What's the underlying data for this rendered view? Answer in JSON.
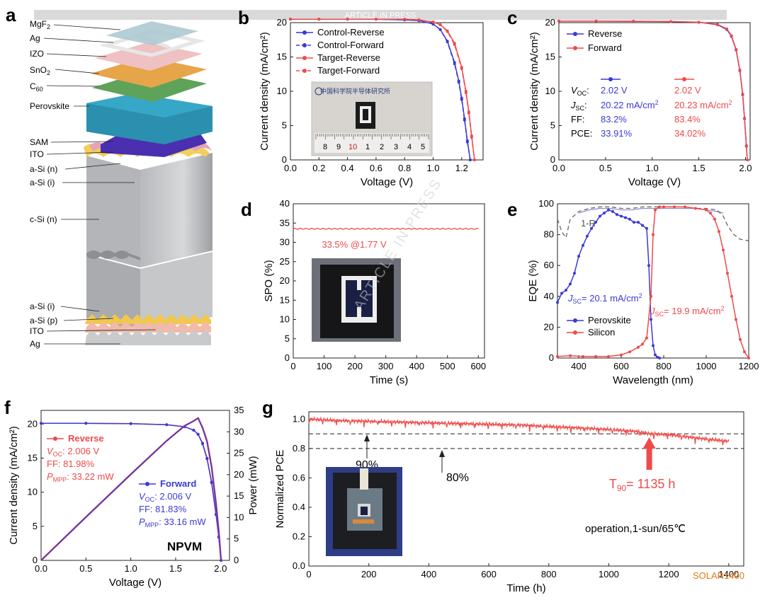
{
  "banner": "ARTICLE IN PRESS",
  "watermark": "ARTICLE IN PRESS",
  "corner_logo": "SOLAR1400",
  "colors": {
    "blue": "#3a3ad6",
    "red": "#ef4a4a",
    "gray": "#777777",
    "banner": "#d9d9d9"
  },
  "panels": {
    "a": "a",
    "b": "b",
    "c": "c",
    "d": "d",
    "e": "e",
    "f": "f",
    "g": "g"
  },
  "stack_labels": [
    "MgF2",
    "Ag",
    "IZO",
    "SnO2",
    "C60",
    "Perovskite",
    "SAM",
    "ITO",
    "a-Si (n)",
    "a-Si (i)",
    "c-Si (n)",
    "a-Si (i)",
    "a-Si (p)",
    "ITO",
    "Ag"
  ],
  "photo_b": {
    "header": "中国科学院半导体研究所",
    "ruler_numbers": [
      "8",
      "9",
      "10",
      "1",
      "2",
      "3",
      "4",
      "5"
    ]
  },
  "chart_data": [
    {
      "panel": "b",
      "type": "line",
      "xlabel": "Voltage (V)",
      "ylabel": "Current density (mA/cm²)",
      "xlim": [
        0,
        1.35
      ],
      "ylim": [
        0,
        20
      ],
      "xticks": [
        "0.0",
        "0.2",
        "0.4",
        "0.6",
        "0.8",
        "1.0",
        "1.2"
      ],
      "yticks": [
        "0",
        "5",
        "10",
        "15",
        "20"
      ],
      "legend": "top-left",
      "series": [
        {
          "name": "Control-Reverse",
          "color": "#3a3ad6",
          "dashed": false,
          "x": [
            0,
            0.2,
            0.4,
            0.6,
            0.8,
            0.9,
            1.0,
            1.05,
            1.1,
            1.15,
            1.18,
            1.2,
            1.22,
            1.24,
            1.26
          ],
          "y": [
            20.5,
            20.5,
            20.5,
            20.5,
            20.4,
            20.3,
            19.8,
            19.0,
            17.3,
            14.2,
            11.5,
            9.0,
            6.0,
            2.8,
            0
          ]
        },
        {
          "name": "Control-Forward",
          "color": "#3a3ad6",
          "dashed": true,
          "x": [
            0,
            0.2,
            0.4,
            0.6,
            0.8,
            0.9,
            1.0,
            1.05,
            1.1,
            1.15,
            1.18,
            1.2,
            1.22,
            1.24,
            1.26
          ],
          "y": [
            20.5,
            20.5,
            20.5,
            20.5,
            20.4,
            20.3,
            19.8,
            19.0,
            17.2,
            14.0,
            11.3,
            8.8,
            5.8,
            2.6,
            0
          ]
        },
        {
          "name": "Target-Reverse",
          "color": "#ef4a4a",
          "dashed": false,
          "x": [
            0,
            0.2,
            0.4,
            0.6,
            0.8,
            0.9,
            1.0,
            1.05,
            1.1,
            1.15,
            1.2,
            1.23,
            1.25,
            1.27,
            1.29
          ],
          "y": [
            20.5,
            20.5,
            20.5,
            20.5,
            20.5,
            20.4,
            20.1,
            19.7,
            18.8,
            17.0,
            13.5,
            10.0,
            7.0,
            3.5,
            0
          ]
        },
        {
          "name": "Target-Forward",
          "color": "#ef4a4a",
          "dashed": true,
          "x": [
            0,
            0.2,
            0.4,
            0.6,
            0.8,
            0.9,
            1.0,
            1.05,
            1.1,
            1.15,
            1.2,
            1.23,
            1.25,
            1.27,
            1.29
          ],
          "y": [
            20.5,
            20.5,
            20.5,
            20.5,
            20.5,
            20.4,
            20.1,
            19.7,
            18.7,
            16.8,
            13.3,
            9.8,
            6.8,
            3.3,
            0
          ]
        }
      ]
    },
    {
      "panel": "c",
      "type": "line",
      "xlabel": "Voltage (V)",
      "ylabel": "Current density (mA/cm²)",
      "xlim": [
        0,
        2.05
      ],
      "ylim": [
        0,
        20
      ],
      "xticks": [
        "0.0",
        "0.5",
        "1.0",
        "1.5",
        "2.0"
      ],
      "yticks": [
        "0",
        "5",
        "10",
        "15",
        "20"
      ],
      "legend": "top-left",
      "series": [
        {
          "name": "Reverse",
          "color": "#3a3ad6",
          "x": [
            0,
            0.4,
            0.8,
            1.2,
            1.5,
            1.7,
            1.8,
            1.85,
            1.9,
            1.94,
            1.97,
            1.99,
            2.01,
            2.02
          ],
          "y": [
            20.22,
            20.22,
            20.2,
            20.15,
            20.05,
            19.7,
            19.0,
            18.0,
            16.0,
            13.0,
            9.5,
            6.0,
            2.0,
            0
          ]
        },
        {
          "name": "Forward",
          "color": "#ef4a4a",
          "x": [
            0,
            0.4,
            0.8,
            1.2,
            1.5,
            1.7,
            1.8,
            1.85,
            1.9,
            1.94,
            1.97,
            1.99,
            2.01,
            2.02
          ],
          "y": [
            20.23,
            20.23,
            20.21,
            20.16,
            20.06,
            19.75,
            19.1,
            18.1,
            16.1,
            13.1,
            9.6,
            6.1,
            2.1,
            0
          ]
        }
      ],
      "table": {
        "row_labels": [
          "V",
          "J",
          "FF:",
          "PCE:"
        ],
        "row_subs": [
          "OC",
          "SC",
          "",
          ""
        ],
        "reverse": [
          "2.02 V",
          "20.22 mA/cm",
          "83.2%",
          "33.91%"
        ],
        "forward": [
          "2.02 V",
          "20.23 mA/cm",
          "83.4%",
          "34.02%"
        ]
      }
    },
    {
      "panel": "d",
      "type": "line",
      "xlabel": "Time (s)",
      "ylabel": "SPO (%)",
      "xlim": [
        0,
        620
      ],
      "ylim": [
        0,
        40
      ],
      "xticks": [
        "0",
        "100",
        "200",
        "300",
        "400",
        "500",
        "600"
      ],
      "yticks": [
        "0",
        "5",
        "10",
        "15",
        "20",
        "25",
        "30",
        "35",
        "40"
      ],
      "series": [
        {
          "name": "",
          "color": "#ef4a4a",
          "x": [
            0,
            600
          ],
          "y": [
            33.5,
            33.5
          ]
        }
      ],
      "annotation": "33.5% @1.77 V"
    },
    {
      "panel": "e",
      "type": "line",
      "xlabel": "Wavelength (nm)",
      "ylabel": "EQE (%)",
      "xlim": [
        300,
        1200
      ],
      "ylim": [
        0,
        100
      ],
      "xticks": [
        "400",
        "600",
        "800",
        "1000",
        "1200"
      ],
      "yticks": [
        "0",
        "20",
        "40",
        "60",
        "80",
        "100"
      ],
      "legend": "bottom-left",
      "series": [
        {
          "name": "Perovskite",
          "color": "#3a3ad6",
          "x": [
            300,
            320,
            340,
            360,
            380,
            400,
            420,
            440,
            460,
            480,
            500,
            520,
            540,
            560,
            580,
            600,
            620,
            640,
            660,
            680,
            700,
            720,
            730,
            740,
            750,
            760,
            770,
            780
          ],
          "y": [
            36,
            42,
            44,
            48,
            55,
            66,
            73,
            79,
            84,
            88,
            92,
            94,
            96,
            95,
            93,
            92,
            91,
            90,
            88,
            88,
            86,
            84,
            60,
            25,
            8,
            2,
            0.5,
            0
          ]
        },
        {
          "name": "Silicon",
          "color": "#ef4a4a",
          "x": [
            300,
            360,
            420,
            480,
            540,
            600,
            640,
            680,
            700,
            720,
            740,
            750,
            760,
            780,
            800,
            850,
            900,
            950,
            1000,
            1020,
            1040,
            1060,
            1080,
            1100,
            1120,
            1140,
            1160,
            1180,
            1200
          ],
          "y": [
            1,
            1.5,
            1,
            1,
            1,
            2,
            4,
            7,
            9,
            13,
            40,
            80,
            96,
            98,
            98,
            98,
            98,
            97,
            96,
            94,
            90,
            82,
            70,
            55,
            40,
            25,
            12,
            4,
            0
          ]
        },
        {
          "name": "1-R",
          "color": "#666666",
          "dashed": true,
          "x": [
            300,
            320,
            340,
            360,
            400,
            450,
            500,
            550,
            600,
            650,
            700,
            750,
            800,
            850,
            900,
            950,
            1000,
            1050,
            1080,
            1100,
            1130,
            1160,
            1200
          ],
          "y": [
            90,
            82,
            78,
            90,
            95,
            97,
            98,
            98,
            97,
            97,
            98,
            98,
            98,
            98,
            98,
            97,
            97,
            96,
            92,
            86,
            80,
            77,
            76
          ]
        },
        {
          "name": "",
          "color": "#8888cc",
          "dashed": false,
          "x": [
            400,
            450,
            500,
            550,
            600,
            650,
            700,
            750,
            800,
            850,
            900,
            950,
            1000,
            1050,
            1080
          ],
          "y": [
            94,
            96,
            97,
            97,
            96,
            96,
            97,
            97,
            97,
            97,
            97,
            97,
            96,
            95,
            94
          ]
        }
      ],
      "annotations": [
        {
          "text": "J",
          "sub": "SC",
          "rest": "= 20.1 mA/cm",
          "color": "#3a3ad6"
        },
        {
          "text": "J",
          "sub": "SC",
          "rest": "= 19.9 mA/cm",
          "color": "#ef4a4a"
        },
        {
          "text": "1-R",
          "color": "#555555"
        }
      ]
    },
    {
      "panel": "f",
      "type": "line",
      "xlabel": "Voltage (V)",
      "ylabel": "Current density (mA/cm²)",
      "y2label": "Power (mW)",
      "xlim": [
        0,
        2.1
      ],
      "ylim": [
        0,
        22
      ],
      "y2lim": [
        0,
        35
      ],
      "xticks": [
        "0.0",
        "0.5",
        "1.0",
        "1.5",
        "2.0"
      ],
      "yticks": [
        "0",
        "5",
        "10",
        "15",
        "20"
      ],
      "y2ticks": [
        "0",
        "5",
        "10",
        "15",
        "20",
        "25",
        "30",
        "35"
      ],
      "series": [
        {
          "name": "Reverse",
          "color": "#ef4a4a",
          "x": [
            0,
            0.5,
            1.0,
            1.4,
            1.6,
            1.7,
            1.75,
            1.8,
            1.85,
            1.9,
            1.95,
            1.98,
            2.006
          ],
          "y": [
            20.1,
            20.1,
            20.05,
            19.9,
            19.6,
            19.1,
            18.5,
            17.2,
            15.0,
            11.5,
            6.8,
            3.5,
            0
          ]
        },
        {
          "name": "Forward",
          "color": "#3a3ad6",
          "x": [
            0,
            0.5,
            1.0,
            1.4,
            1.6,
            1.7,
            1.75,
            1.8,
            1.85,
            1.9,
            1.95,
            1.98,
            2.006
          ],
          "y": [
            20.1,
            20.1,
            20.05,
            19.9,
            19.6,
            19.1,
            18.5,
            17.1,
            14.9,
            11.4,
            6.7,
            3.4,
            0
          ]
        },
        {
          "name": "Power Reverse",
          "axis": "y2",
          "color": "#ef4a4a",
          "x": [
            0,
            0.5,
            1.0,
            1.4,
            1.6,
            1.7,
            1.75,
            1.8,
            1.85,
            1.9,
            1.95,
            1.98,
            2.006
          ],
          "y": [
            0,
            10.1,
            20.1,
            27.9,
            31.4,
            32.5,
            33.2,
            31.0,
            27.8,
            21.9,
            13.3,
            6.9,
            0
          ]
        },
        {
          "name": "Power Forward",
          "axis": "y2",
          "color": "#3a3ad6",
          "x": [
            0,
            0.5,
            1.0,
            1.4,
            1.6,
            1.7,
            1.75,
            1.8,
            1.85,
            1.9,
            1.95,
            1.98,
            2.006
          ],
          "y": [
            0,
            10.1,
            20.1,
            27.9,
            31.4,
            32.5,
            33.16,
            30.8,
            27.6,
            21.7,
            13.1,
            6.7,
            0
          ]
        }
      ],
      "reverse": {
        "title": "Reverse",
        "voc": ": 2.006 V",
        "ff": "FF: 81.98%",
        "pmpp": ": 33.22 mW"
      },
      "forward": {
        "title": "Forward",
        "voc": ": 2.006 V",
        "ff": "FF: 81.83%",
        "pmpp": ": 33.16 mW"
      },
      "label": "NPVM"
    },
    {
      "panel": "g",
      "type": "line",
      "xlabel": "Time (h)",
      "ylabel": "Normalized PCE",
      "xlim": [
        0,
        1450
      ],
      "ylim": [
        0,
        1.05
      ],
      "xticks": [
        "0",
        "200",
        "400",
        "600",
        "800",
        "1000",
        "1200",
        "1400"
      ],
      "yticks": [
        "0.0",
        "0.2",
        "0.4",
        "0.6",
        "0.8",
        "1.0"
      ],
      "series": [
        {
          "name": "",
          "color": "#ef4a4a",
          "x": [
            0,
            100,
            200,
            300,
            400,
            500,
            600,
            700,
            800,
            900,
            1000,
            1100,
            1135,
            1200,
            1300,
            1400
          ],
          "y": [
            1.0,
            0.99,
            0.985,
            0.98,
            0.975,
            0.97,
            0.965,
            0.96,
            0.95,
            0.94,
            0.93,
            0.915,
            0.9,
            0.895,
            0.87,
            0.85
          ]
        }
      ],
      "hlines": [
        0.9,
        0.8
      ],
      "labels": {
        "p90": "90%",
        "p80": "80%",
        "t90": "T",
        "t90_sub": "90",
        "t90_rest": "= 1135 h",
        "cond": "operation,1-sun/65℃"
      },
      "t90_x": 1135
    }
  ]
}
